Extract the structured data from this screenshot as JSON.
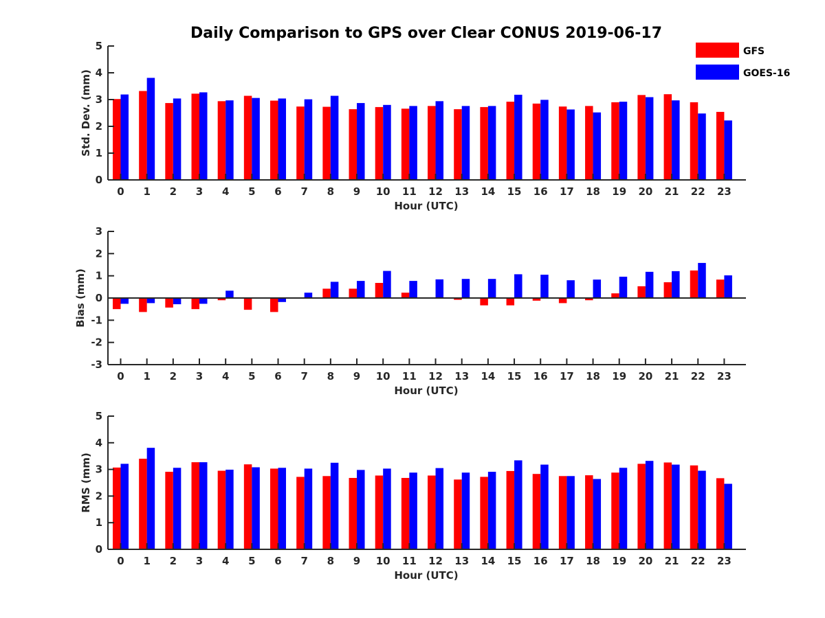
{
  "chart_data": {
    "type": "bar",
    "title": "Daily Comparison to GPS over Clear CONUS 2019-06-17",
    "legend": {
      "placement": "top-right",
      "entries": [
        {
          "name": "GFS",
          "color": "#ff0000"
        },
        {
          "name": "GOES-16",
          "color": "#0000ff"
        }
      ]
    },
    "categories": [
      "0",
      "1",
      "2",
      "3",
      "4",
      "5",
      "6",
      "7",
      "8",
      "9",
      "10",
      "11",
      "12",
      "13",
      "14",
      "15",
      "16",
      "17",
      "18",
      "19",
      "20",
      "21",
      "22",
      "23"
    ],
    "panels": [
      {
        "id": "stddev",
        "ylabel": "Std. Dev. (mm)",
        "xlabel": "Hour (UTC)",
        "ylim": [
          0,
          5
        ],
        "yticks": [
          0,
          1,
          2,
          3,
          4,
          5
        ],
        "series": [
          {
            "name": "GFS",
            "values": [
              3.02,
              3.32,
              2.87,
              3.22,
              2.94,
              3.14,
              2.96,
              2.74,
              2.73,
              2.64,
              2.72,
              2.66,
              2.76,
              2.64,
              2.72,
              2.92,
              2.85,
              2.74,
              2.76,
              2.9,
              3.17,
              3.2,
              2.9,
              2.54
            ]
          },
          {
            "name": "GOES-16",
            "values": [
              3.19,
              3.81,
              3.04,
              3.27,
              2.97,
              3.06,
              3.04,
              3.01,
              3.14,
              2.87,
              2.8,
              2.76,
              2.94,
              2.76,
              2.76,
              3.18,
              2.99,
              2.63,
              2.52,
              2.92,
              3.09,
              2.97,
              2.48,
              2.22
            ]
          }
        ]
      },
      {
        "id": "bias",
        "ylabel": "Bias (mm)",
        "xlabel": "Hour (UTC)",
        "ylim": [
          -3,
          3
        ],
        "yticks": [
          -3,
          -2,
          -1,
          0,
          1,
          2,
          3
        ],
        "series": [
          {
            "name": "GFS",
            "values": [
              -0.5,
              -0.63,
              -0.43,
              -0.5,
              -0.1,
              -0.53,
              -0.63,
              -0.03,
              0.42,
              0.42,
              0.68,
              0.24,
              0.0,
              -0.08,
              -0.33,
              -0.33,
              -0.12,
              -0.23,
              -0.1,
              0.21,
              0.53,
              0.71,
              1.24,
              0.83
            ]
          },
          {
            "name": "GOES-16",
            "values": [
              -0.26,
              -0.23,
              -0.28,
              -0.26,
              0.33,
              0.02,
              -0.18,
              0.24,
              0.73,
              0.77,
              1.22,
              0.77,
              0.84,
              0.86,
              0.86,
              1.07,
              1.05,
              0.8,
              0.83,
              0.96,
              1.18,
              1.21,
              1.58,
              1.02
            ]
          }
        ]
      },
      {
        "id": "rms",
        "ylabel": "RMS (mm)",
        "xlabel": "Hour (UTC)",
        "ylim": [
          0,
          5
        ],
        "yticks": [
          0,
          1,
          2,
          3,
          4,
          5
        ],
        "series": [
          {
            "name": "GFS",
            "values": [
              3.07,
              3.4,
              2.91,
              3.27,
              2.95,
              3.19,
              3.03,
              2.72,
              2.75,
              2.68,
              2.77,
              2.68,
              2.77,
              2.62,
              2.72,
              2.94,
              2.83,
              2.75,
              2.78,
              2.88,
              3.21,
              3.26,
              3.15,
              2.67
            ]
          },
          {
            "name": "GOES-16",
            "values": [
              3.21,
              3.81,
              3.06,
              3.27,
              2.99,
              3.08,
              3.06,
              3.03,
              3.25,
              2.98,
              3.03,
              2.88,
              3.05,
              2.88,
              2.91,
              3.34,
              3.18,
              2.75,
              2.64,
              3.06,
              3.32,
              3.18,
              2.95,
              2.46
            ]
          }
        ]
      }
    ]
  }
}
